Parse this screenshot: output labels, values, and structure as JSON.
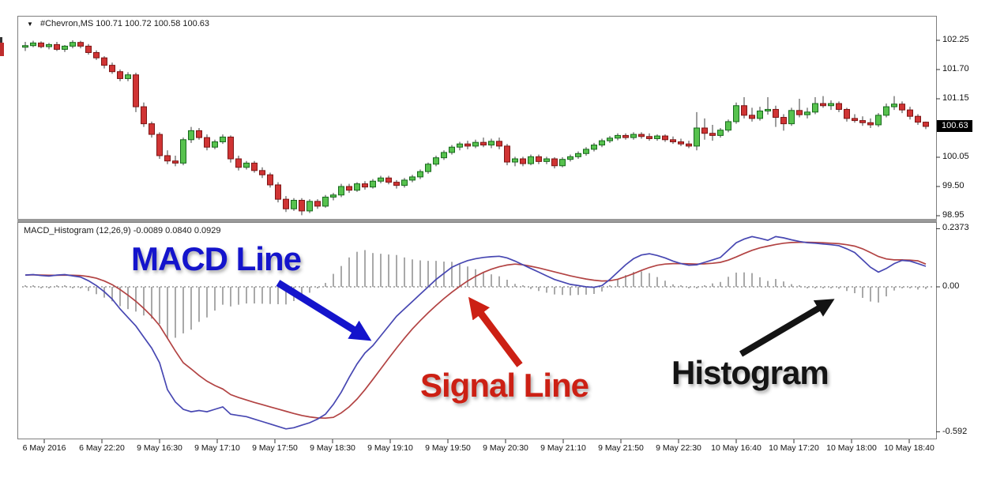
{
  "symbol_header": {
    "dropdown_icon": "▼",
    "title": "#Chevron,MS 100.71 100.72 100.58 100.63"
  },
  "indicator_header": {
    "title": "MACD_Histogram (12,26,9) -0.0089 0.0840 0.0929"
  },
  "colors": {
    "candle_up": "#57c24e",
    "candle_up_border": "#17691c",
    "candle_down": "#d03434",
    "candle_down_border": "#7d1616",
    "wick": "#3c3c3c",
    "macd_line": "#4747b2",
    "signal_line": "#b24343",
    "histogram_bar": "#a9a9a9",
    "zero_line": "#949494",
    "annotation_blue": "#1414cc",
    "annotation_red": "#cc2014",
    "annotation_black": "#141414",
    "price_tag_bg": "#000000",
    "price_tag_text": "#ffffff",
    "panel_border": "#7e7e7e"
  },
  "chart_data": [
    {
      "type": "candlestick",
      "symbol": "#Chevron,MS",
      "title": "#Chevron,MS 100.71 100.72 100.58 100.63",
      "ohlc_current": {
        "open": 100.71,
        "high": 100.72,
        "low": 100.58,
        "close": 100.63
      },
      "current_price_label": "100.63",
      "y_axis_labels": [
        "102.25",
        "101.70",
        "101.15",
        "100.05",
        "99.50",
        "98.95"
      ],
      "ylim": [
        98.8,
        102.4
      ],
      "x_labels": [
        "6 May 2016",
        "6 May 22:20",
        "9 May 16:30",
        "9 May 17:10",
        "9 May 17:50",
        "9 May 18:30",
        "9 May 19:10",
        "9 May 19:50",
        "9 May 20:30",
        "9 May 21:10",
        "9 May 21:50",
        "9 May 22:30",
        "10 May 16:40",
        "10 May 17:20",
        "10 May 18:00",
        "10 May 18:40"
      ],
      "candles": [
        [
          102.12,
          102.22,
          102.05,
          102.15
        ],
        [
          102.15,
          102.24,
          102.12,
          102.2
        ],
        [
          102.2,
          102.23,
          102.1,
          102.13
        ],
        [
          102.13,
          102.2,
          102.08,
          102.17
        ],
        [
          102.17,
          102.22,
          102.05,
          102.08
        ],
        [
          102.08,
          102.16,
          102.03,
          102.14
        ],
        [
          102.14,
          102.25,
          102.1,
          102.21
        ],
        [
          102.21,
          102.24,
          102.1,
          102.14
        ],
        [
          102.14,
          102.18,
          101.98,
          102.02
        ],
        [
          102.02,
          102.06,
          101.88,
          101.92
        ],
        [
          101.92,
          101.95,
          101.72,
          101.78
        ],
        [
          101.78,
          101.83,
          101.62,
          101.66
        ],
        [
          101.66,
          101.7,
          101.48,
          101.53
        ],
        [
          101.53,
          101.65,
          101.48,
          101.6
        ],
        [
          101.6,
          101.64,
          100.9,
          101.0
        ],
        [
          101.0,
          101.08,
          100.62,
          100.68
        ],
        [
          100.68,
          100.72,
          100.42,
          100.48
        ],
        [
          100.48,
          100.52,
          100.02,
          100.08
        ],
        [
          100.08,
          100.18,
          99.92,
          99.98
        ],
        [
          99.98,
          100.08,
          99.88,
          99.94
        ],
        [
          99.94,
          100.42,
          99.9,
          100.38
        ],
        [
          100.38,
          100.62,
          100.32,
          100.55
        ],
        [
          100.55,
          100.6,
          100.38,
          100.42
        ],
        [
          100.42,
          100.48,
          100.18,
          100.24
        ],
        [
          100.24,
          100.38,
          100.2,
          100.34
        ],
        [
          100.34,
          100.48,
          100.3,
          100.43
        ],
        [
          100.43,
          100.46,
          99.95,
          100.02
        ],
        [
          100.02,
          100.08,
          99.8,
          99.86
        ],
        [
          99.86,
          99.98,
          99.82,
          99.94
        ],
        [
          99.94,
          99.98,
          99.76,
          99.8
        ],
        [
          99.8,
          99.86,
          99.66,
          99.72
        ],
        [
          99.72,
          99.76,
          99.48,
          99.53
        ],
        [
          99.53,
          99.58,
          99.2,
          99.26
        ],
        [
          99.26,
          99.32,
          99.02,
          99.08
        ],
        [
          99.08,
          99.28,
          99.04,
          99.24
        ],
        [
          99.24,
          99.28,
          98.96,
          99.04
        ],
        [
          99.04,
          99.26,
          99.0,
          99.22
        ],
        [
          99.22,
          99.26,
          99.08,
          99.13
        ],
        [
          99.13,
          99.34,
          99.1,
          99.3
        ],
        [
          99.3,
          99.38,
          99.24,
          99.34
        ],
        [
          99.34,
          99.55,
          99.3,
          99.5
        ],
        [
          99.5,
          99.55,
          99.38,
          99.43
        ],
        [
          99.43,
          99.58,
          99.4,
          99.55
        ],
        [
          99.55,
          99.6,
          99.44,
          99.49
        ],
        [
          99.49,
          99.64,
          99.46,
          99.6
        ],
        [
          99.6,
          99.7,
          99.56,
          99.66
        ],
        [
          99.66,
          99.7,
          99.54,
          99.58
        ],
        [
          99.58,
          99.62,
          99.46,
          99.52
        ],
        [
          99.52,
          99.66,
          99.48,
          99.62
        ],
        [
          99.62,
          99.72,
          99.58,
          99.68
        ],
        [
          99.68,
          99.82,
          99.64,
          99.78
        ],
        [
          99.78,
          99.95,
          99.74,
          99.92
        ],
        [
          99.92,
          100.08,
          99.88,
          100.04
        ],
        [
          100.04,
          100.18,
          100.0,
          100.14
        ],
        [
          100.14,
          100.28,
          100.1,
          100.24
        ],
        [
          100.24,
          100.34,
          100.18,
          100.3
        ],
        [
          100.3,
          100.36,
          100.2,
          100.26
        ],
        [
          100.26,
          100.38,
          100.22,
          100.33
        ],
        [
          100.33,
          100.42,
          100.24,
          100.28
        ],
        [
          100.28,
          100.4,
          100.22,
          100.35
        ],
        [
          100.35,
          100.42,
          100.2,
          100.26
        ],
        [
          100.26,
          100.3,
          99.9,
          99.96
        ],
        [
          99.96,
          100.06,
          99.88,
          100.02
        ],
        [
          100.02,
          100.06,
          99.88,
          99.93
        ],
        [
          99.93,
          100.1,
          99.9,
          100.06
        ],
        [
          100.06,
          100.1,
          99.92,
          99.97
        ],
        [
          99.97,
          100.06,
          99.92,
          100.02
        ],
        [
          100.02,
          100.05,
          99.84,
          99.89
        ],
        [
          99.89,
          100.05,
          99.86,
          100.01
        ],
        [
          100.01,
          100.1,
          99.97,
          100.06
        ],
        [
          100.06,
          100.16,
          100.02,
          100.12
        ],
        [
          100.12,
          100.24,
          100.08,
          100.2
        ],
        [
          100.2,
          100.32,
          100.16,
          100.28
        ],
        [
          100.28,
          100.4,
          100.24,
          100.36
        ],
        [
          100.36,
          100.45,
          100.32,
          100.41
        ],
        [
          100.41,
          100.5,
          100.37,
          100.46
        ],
        [
          100.46,
          100.5,
          100.38,
          100.42
        ],
        [
          100.42,
          100.52,
          100.38,
          100.48
        ],
        [
          100.48,
          100.52,
          100.4,
          100.44
        ],
        [
          100.44,
          100.5,
          100.36,
          100.4
        ],
        [
          100.4,
          100.48,
          100.36,
          100.45
        ],
        [
          100.45,
          100.48,
          100.34,
          100.38
        ],
        [
          100.38,
          100.44,
          100.3,
          100.34
        ],
        [
          100.34,
          100.4,
          100.26,
          100.3
        ],
        [
          100.3,
          100.36,
          100.22,
          100.26
        ],
        [
          100.26,
          100.9,
          100.18,
          100.6
        ],
        [
          100.6,
          100.78,
          100.38,
          100.5
        ],
        [
          100.5,
          100.66,
          100.36,
          100.46
        ],
        [
          100.46,
          100.6,
          100.42,
          100.56
        ],
        [
          100.56,
          100.76,
          100.52,
          100.72
        ],
        [
          100.72,
          101.08,
          100.68,
          101.02
        ],
        [
          101.02,
          101.18,
          100.78,
          100.84
        ],
        [
          100.84,
          100.98,
          100.72,
          100.78
        ],
        [
          100.78,
          101.0,
          100.74,
          100.92
        ],
        [
          100.92,
          101.18,
          100.85,
          100.95
        ],
        [
          100.95,
          101.02,
          100.62,
          100.8
        ],
        [
          100.8,
          100.86,
          100.55,
          100.68
        ],
        [
          100.68,
          100.98,
          100.64,
          100.93
        ],
        [
          100.93,
          101.15,
          100.8,
          100.85
        ],
        [
          100.85,
          100.98,
          100.78,
          100.9
        ],
        [
          100.9,
          101.18,
          100.86,
          101.06
        ],
        [
          101.06,
          101.2,
          100.98,
          101.02
        ],
        [
          101.02,
          101.12,
          100.94,
          101.06
        ],
        [
          101.06,
          101.1,
          100.9,
          100.95
        ],
        [
          100.95,
          100.98,
          100.72,
          100.78
        ],
        [
          100.78,
          100.86,
          100.7,
          100.74
        ],
        [
          100.74,
          100.82,
          100.64,
          100.7
        ],
        [
          100.7,
          100.78,
          100.6,
          100.66
        ],
        [
          100.66,
          100.88,
          100.62,
          100.84
        ],
        [
          100.84,
          101.06,
          100.8,
          101.0
        ],
        [
          101.0,
          101.2,
          100.94,
          101.05
        ],
        [
          101.05,
          101.1,
          100.88,
          100.94
        ],
        [
          100.94,
          101.0,
          100.76,
          100.82
        ],
        [
          100.82,
          100.86,
          100.66,
          100.71
        ],
        [
          100.71,
          100.72,
          100.58,
          100.63
        ]
      ]
    },
    {
      "type": "macd",
      "title": "MACD_Histogram (12,26,9) -0.0089 0.0840 0.0929",
      "params": "(12,26,9)",
      "current_values": {
        "histogram": -0.0089,
        "macd": 0.084,
        "signal": 0.0929
      },
      "y_axis_labels": [
        "0.2373",
        "0.00",
        "-0.592"
      ],
      "ylim": [
        -0.62,
        0.25
      ],
      "histogram_note": "histogram = macd_line - signal_line",
      "macd_line": [
        0.048,
        0.05,
        0.046,
        0.044,
        0.048,
        0.05,
        0.045,
        0.04,
        0.025,
        0.005,
        -0.02,
        -0.05,
        -0.09,
        -0.125,
        -0.16,
        -0.205,
        -0.25,
        -0.31,
        -0.42,
        -0.47,
        -0.5,
        -0.51,
        -0.505,
        -0.51,
        -0.5,
        -0.49,
        -0.52,
        -0.525,
        -0.53,
        -0.54,
        -0.55,
        -0.56,
        -0.57,
        -0.58,
        -0.575,
        -0.565,
        -0.555,
        -0.54,
        -0.52,
        -0.48,
        -0.43,
        -0.37,
        -0.315,
        -0.27,
        -0.24,
        -0.2,
        -0.16,
        -0.12,
        -0.09,
        -0.06,
        -0.03,
        0.0,
        0.03,
        0.055,
        0.08,
        0.095,
        0.107,
        0.115,
        0.12,
        0.123,
        0.125,
        0.118,
        0.105,
        0.09,
        0.075,
        0.06,
        0.045,
        0.03,
        0.02,
        0.01,
        0.005,
        0.0,
        -0.002,
        0.005,
        0.03,
        0.06,
        0.09,
        0.115,
        0.13,
        0.135,
        0.128,
        0.118,
        0.105,
        0.095,
        0.088,
        0.09,
        0.1,
        0.11,
        0.12,
        0.15,
        0.18,
        0.195,
        0.205,
        0.198,
        0.19,
        0.205,
        0.2,
        0.192,
        0.185,
        0.18,
        0.178,
        0.175,
        0.172,
        0.168,
        0.155,
        0.14,
        0.11,
        0.08,
        0.06,
        0.075,
        0.095,
        0.108,
        0.105,
        0.095,
        0.084
      ],
      "signal_line": [
        0.048,
        0.049,
        0.048,
        0.047,
        0.047,
        0.048,
        0.047,
        0.046,
        0.042,
        0.035,
        0.024,
        0.009,
        -0.011,
        -0.034,
        -0.059,
        -0.088,
        -0.12,
        -0.158,
        -0.21,
        -0.262,
        -0.31,
        -0.335,
        -0.362,
        -0.385,
        -0.403,
        -0.417,
        -0.44,
        -0.452,
        -0.462,
        -0.472,
        -0.481,
        -0.49,
        -0.499,
        -0.508,
        -0.517,
        -0.525,
        -0.531,
        -0.535,
        -0.536,
        -0.533,
        -0.515,
        -0.49,
        -0.458,
        -0.42,
        -0.378,
        -0.335,
        -0.292,
        -0.25,
        -0.21,
        -0.172,
        -0.138,
        -0.106,
        -0.076,
        -0.048,
        -0.022,
        0.002,
        0.024,
        0.043,
        0.059,
        0.072,
        0.082,
        0.089,
        0.093,
        0.09,
        0.084,
        0.077,
        0.069,
        0.061,
        0.053,
        0.045,
        0.038,
        0.032,
        0.027,
        0.024,
        0.025,
        0.031,
        0.042,
        0.054,
        0.067,
        0.079,
        0.088,
        0.093,
        0.095,
        0.095,
        0.094,
        0.093,
        0.094,
        0.096,
        0.1,
        0.109,
        0.122,
        0.136,
        0.149,
        0.159,
        0.166,
        0.173,
        0.178,
        0.181,
        0.182,
        0.182,
        0.181,
        0.18,
        0.178,
        0.176,
        0.172,
        0.166,
        0.155,
        0.14,
        0.124,
        0.114,
        0.11,
        0.11,
        0.109,
        0.106,
        0.093
      ],
      "annotations": [
        {
          "label": "MACD Line",
          "color": "#1414cc",
          "arrow": "points down-right to blue MACD line"
        },
        {
          "label": "Signal Line",
          "color": "#cc2014",
          "arrow": "points up-left to red signal line"
        },
        {
          "label": "Histogram",
          "color": "#141414",
          "arrow": "points up-right to gray histogram bars"
        }
      ]
    }
  ]
}
